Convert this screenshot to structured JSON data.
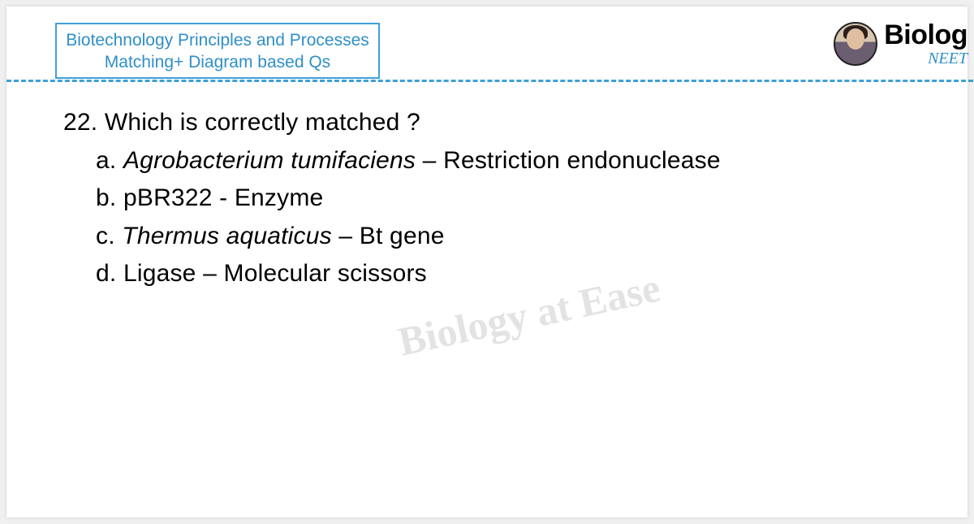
{
  "header": {
    "title_line1": "Biotechnology Principles and Processes",
    "title_line2": "Matching+ Diagram  based Qs",
    "title_color": "#2f8fc6",
    "title_border_color": "#3fa0d8",
    "divider_color": "#3fa0d8"
  },
  "brand": {
    "title_fragment": "Biolog",
    "subtitle_fragment": "NEET",
    "title_color": "#000000",
    "subtitle_color": "#2f8fc6"
  },
  "question": {
    "number": "22.",
    "stem": "Which is correctly matched ?",
    "options": [
      {
        "label": "a.",
        "italic": "Agrobacterium   tumifaciens",
        "rest": " – Restriction  endonuclease"
      },
      {
        "label": "b.",
        "italic": "",
        "rest": "pBR322 - Enzyme"
      },
      {
        "label": "c.",
        "italic": "Thermus aquaticus",
        "rest": " – Bt gene"
      },
      {
        "label": "d.",
        "italic": "",
        "rest": "Ligase – Molecular  scissors"
      }
    ],
    "text_color": "#000000",
    "fontsize": 30
  },
  "watermark": {
    "text": "Biology at Ease",
    "color": "rgba(100,100,100,0.18)",
    "fontsize": 50,
    "rotate_deg": -12
  },
  "background_color": "#ffffff"
}
